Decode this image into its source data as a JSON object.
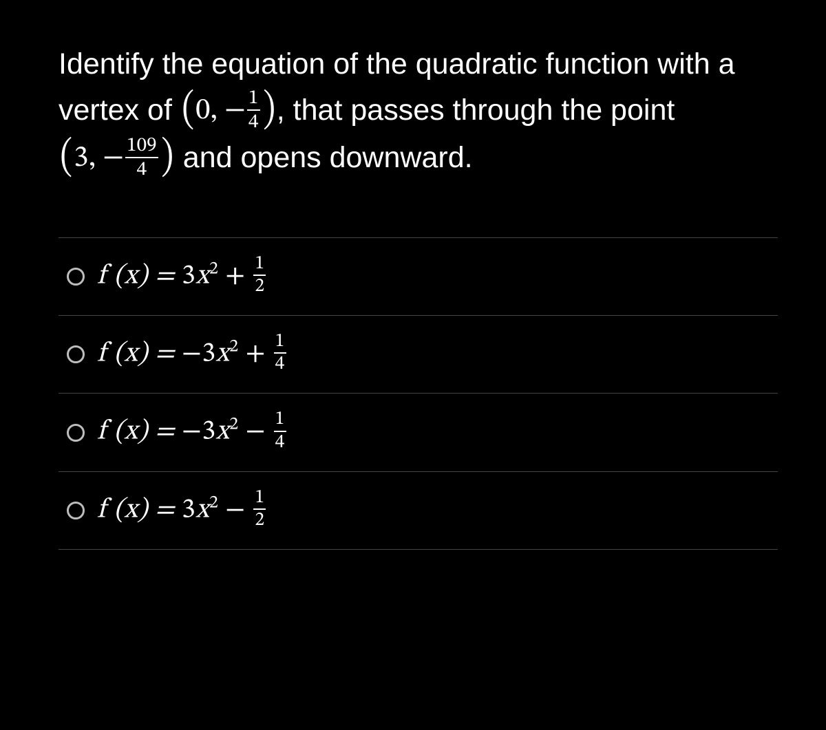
{
  "colors": {
    "background": "#000000",
    "text": "#ffffff",
    "divider": "#444444",
    "radio_border": "#bdbdbd"
  },
  "question": {
    "line1_pre": "Identify the equation of the quadratic ",
    "line2_pre": "function with a vertex of ",
    "vertex_x": "0",
    "vertex_y_sign": "−",
    "vertex_y_num": "1",
    "vertex_y_den": "4",
    "line2_post": ", that ",
    "line3_pre": "passes through the point ",
    "point_x": "3",
    "point_y_sign": "−",
    "point_y_num": "109",
    "point_y_den": "4",
    "line3_post": " and ",
    "line4": "opens downward."
  },
  "options": [
    {
      "lhs": "f (x) = ",
      "coef": "3",
      "coef_sign": "",
      "var": "x",
      "exp": "2",
      "op": " + ",
      "frac_num": "1",
      "frac_den": "2"
    },
    {
      "lhs": "f (x) = ",
      "coef": "3",
      "coef_sign": "−",
      "var": "x",
      "exp": "2",
      "op": " + ",
      "frac_num": "1",
      "frac_den": "4"
    },
    {
      "lhs": "f (x) = ",
      "coef": "3",
      "coef_sign": "−",
      "var": "x",
      "exp": "2",
      "op": " − ",
      "frac_num": "1",
      "frac_den": "4"
    },
    {
      "lhs": "f (x) = ",
      "coef": "3",
      "coef_sign": "",
      "var": "x",
      "exp": "2",
      "op": " − ",
      "frac_num": "1",
      "frac_den": "2"
    }
  ]
}
